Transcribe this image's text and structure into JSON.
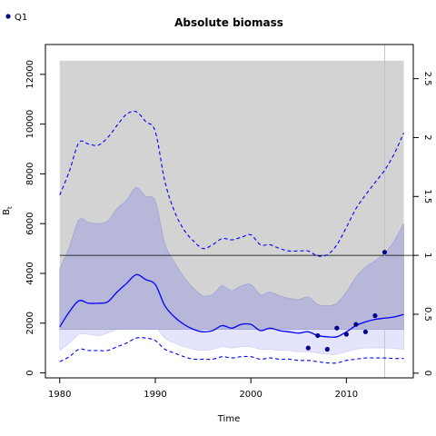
{
  "chart_data": {
    "type": "line",
    "title": "Absolute biomass",
    "xlabel": "Time",
    "ylabel": "B",
    "ylabel_sub": "t",
    "xlim": [
      1978.5,
      2017
    ],
    "ylim": [
      -200,
      13200
    ],
    "y2lim": [
      -0.04,
      2.79
    ],
    "x_ticks": [
      1980,
      1990,
      2000,
      2010
    ],
    "y_ticks": [
      0,
      2000,
      4000,
      6000,
      8000,
      10000,
      12000
    ],
    "y2_ticks": [
      0,
      0.5,
      1,
      1.5,
      2,
      2.5
    ],
    "colors": {
      "grey_band": "#d3d3d3",
      "outer_band": "#e4e4fc",
      "inner_band": "#b7b7da",
      "line": "#0000ff",
      "points": "#00008b",
      "reference": "#000000",
      "vertical_marker": "#bbbbbb"
    },
    "grey_band": {
      "x0": 1980,
      "x1": 2016,
      "y0": 1750,
      "y1": 12550
    },
    "reference_line_y2": 1,
    "vertical_marker_x": 2014,
    "legend": {
      "position": "top-left",
      "entries": [
        "Q1"
      ]
    },
    "series": [
      {
        "role": "median",
        "style": "solid",
        "x": [
          1980,
          1981,
          1982,
          1983,
          1984,
          1985,
          1986,
          1987,
          1988,
          1989,
          1990,
          1991,
          1992,
          1993,
          1994,
          1995,
          1996,
          1997,
          1998,
          1999,
          2000,
          2001,
          2002,
          2003,
          2004,
          2005,
          2006,
          2007,
          2008,
          2009,
          2010,
          2011,
          2012,
          2013,
          2014,
          2015,
          2016
        ],
        "y": [
          1850,
          2450,
          2900,
          2800,
          2800,
          2850,
          3250,
          3600,
          3950,
          3750,
          3550,
          2700,
          2250,
          1950,
          1750,
          1650,
          1700,
          1900,
          1800,
          1950,
          1950,
          1700,
          1800,
          1700,
          1650,
          1600,
          1650,
          1500,
          1450,
          1450,
          1650,
          1900,
          2050,
          2150,
          2200,
          2250,
          2350
        ]
      },
      {
        "role": "upper_interval",
        "style": "dashed",
        "x": [
          1980,
          1981,
          1982,
          1983,
          1984,
          1985,
          1986,
          1987,
          1988,
          1989,
          1990,
          1991,
          1992,
          1993,
          1994,
          1995,
          1996,
          1997,
          1998,
          1999,
          2000,
          2001,
          2002,
          2003,
          2004,
          2005,
          2006,
          2007,
          2008,
          2009,
          2010,
          2011,
          2012,
          2013,
          2014,
          2015,
          2016
        ],
        "y": [
          7150,
          8100,
          9250,
          9200,
          9150,
          9450,
          9950,
          10400,
          10500,
          10100,
          9700,
          7700,
          6500,
          5750,
          5300,
          5000,
          5150,
          5400,
          5350,
          5450,
          5550,
          5150,
          5150,
          5000,
          4900,
          4900,
          4900,
          4700,
          4750,
          5150,
          5850,
          6600,
          7150,
          7650,
          8150,
          8800,
          9650
        ]
      },
      {
        "role": "lower_interval",
        "style": "dashed",
        "x": [
          1980,
          1981,
          1982,
          1983,
          1984,
          1985,
          1986,
          1987,
          1988,
          1989,
          1990,
          1991,
          1992,
          1993,
          1994,
          1995,
          1996,
          1997,
          1998,
          1999,
          2000,
          2001,
          2002,
          2003,
          2004,
          2005,
          2006,
          2007,
          2008,
          2009,
          2010,
          2011,
          2012,
          2013,
          2014,
          2015,
          2016
        ],
        "y": [
          450,
          650,
          950,
          900,
          900,
          900,
          1050,
          1200,
          1400,
          1400,
          1300,
          950,
          800,
          650,
          550,
          550,
          550,
          650,
          600,
          650,
          650,
          550,
          600,
          550,
          550,
          500,
          500,
          450,
          400,
          400,
          500,
          550,
          600,
          600,
          600,
          580,
          580
        ]
      },
      {
        "role": "outer_band_lower",
        "style": "fill",
        "x": [
          1980,
          1981,
          1982,
          1983,
          1984,
          1985,
          1986,
          1987,
          1988,
          1989,
          1990,
          1991,
          1992,
          1993,
          1994,
          1995,
          1996,
          1997,
          1998,
          1999,
          2000,
          2001,
          2002,
          2003,
          2004,
          2005,
          2006,
          2007,
          2008,
          2009,
          2010,
          2011,
          2012,
          2013,
          2014,
          2015,
          2016
        ],
        "y": [
          900,
          1200,
          1550,
          1550,
          1500,
          1600,
          1750,
          1900,
          2050,
          2000,
          1850,
          1400,
          1200,
          1050,
          950,
          900,
          950,
          1050,
          1000,
          1050,
          1050,
          950,
          950,
          900,
          900,
          850,
          850,
          800,
          750,
          750,
          850,
          950,
          1000,
          1000,
          1000,
          980,
          950
        ]
      },
      {
        "role": "inner_band_upper",
        "style": "fill",
        "x": [
          1980,
          1981,
          1982,
          1983,
          1984,
          1985,
          1986,
          1987,
          1988,
          1989,
          1990,
          1991,
          1992,
          1993,
          1994,
          1995,
          1996,
          1997,
          1998,
          1999,
          2000,
          2001,
          2002,
          2003,
          2004,
          2005,
          2006,
          2007,
          2008,
          2009,
          2010,
          2011,
          2012,
          2013,
          2014,
          2015,
          2016
        ],
        "y": [
          4200,
          5050,
          6150,
          6050,
          6000,
          6100,
          6600,
          6950,
          7450,
          7100,
          6900,
          5200,
          4450,
          3850,
          3400,
          3100,
          3150,
          3500,
          3300,
          3500,
          3550,
          3150,
          3250,
          3100,
          3000,
          2950,
          3050,
          2750,
          2700,
          2800,
          3250,
          3850,
          4250,
          4500,
          4800,
          5300,
          6000
        ]
      }
    ],
    "points": {
      "name": "Q1",
      "x": [
        2006,
        2007,
        2008,
        2009,
        2010,
        2011,
        2012,
        2013,
        2014
      ],
      "y": [
        1000,
        1500,
        950,
        1800,
        1550,
        1950,
        1650,
        2300,
        4850
      ]
    }
  }
}
